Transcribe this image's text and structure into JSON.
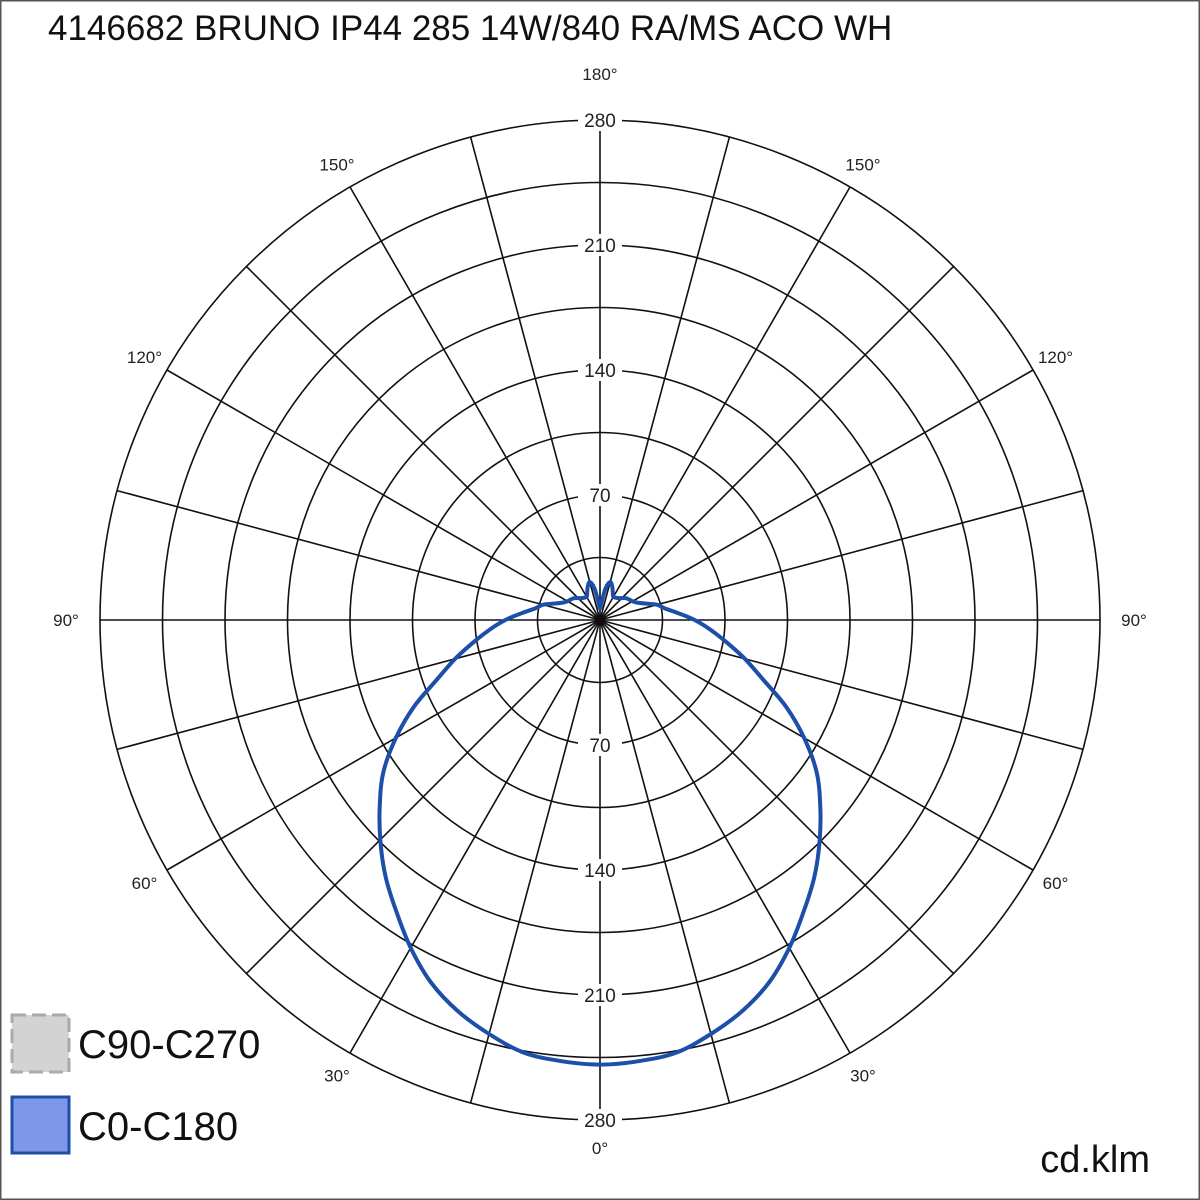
{
  "chart_data": {
    "type": "polar",
    "title": "4146682 BRUNO IP44 285 14W/840 RA/MS ACO WH",
    "unit": "cd.klm",
    "radial_range": [
      0,
      280
    ],
    "radial_ticks": [
      70,
      140,
      210,
      280
    ],
    "angle_labels": [
      "0°",
      "30°",
      "60°",
      "90°",
      "120°",
      "150°",
      "180°"
    ],
    "grid": true,
    "legend_placement": "bottom-left",
    "legend": [
      {
        "name": "C90-C270",
        "color": "#d3d3d3",
        "border": "#aaaaaa",
        "style": "dashed"
      },
      {
        "name": "C0-C180",
        "color": "#7f97e8",
        "border": "#1c4fa8",
        "style": "solid"
      }
    ],
    "series": [
      {
        "name": "C0-C180",
        "color": "#1c4fa8",
        "gamma": [
          0,
          5,
          10,
          15,
          20,
          25,
          30,
          35,
          40,
          45,
          50,
          55,
          60,
          65,
          70,
          75,
          80,
          85,
          90,
          95,
          100,
          105,
          110,
          115,
          120,
          130,
          140,
          150,
          155,
          160,
          165,
          170,
          175,
          180
        ],
        "values": [
          249,
          248,
          246,
          240,
          233,
          224,
          212,
          199,
          187,
          174,
          161,
          148,
          132,
          115,
          97,
          84,
          72,
          62,
          53,
          44,
          37,
          33,
          27,
          23,
          21,
          19,
          16,
          15,
          17,
          20,
          22,
          18,
          10,
          6
        ]
      }
    ]
  }
}
